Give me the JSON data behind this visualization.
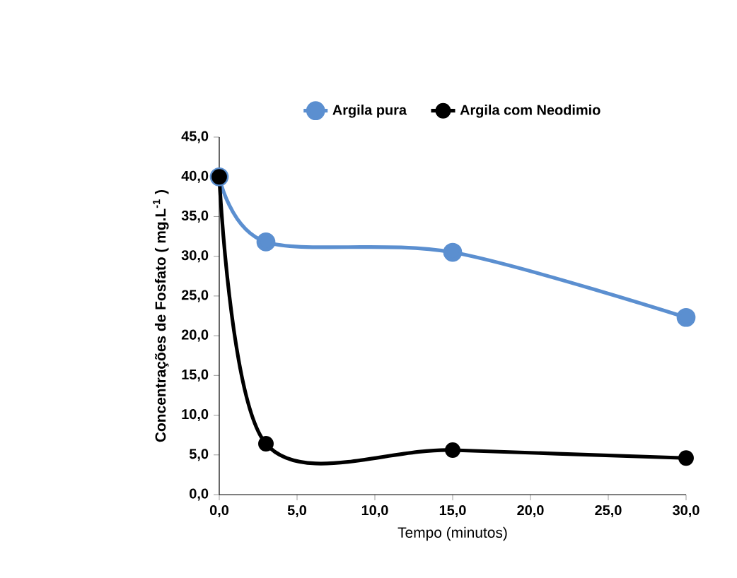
{
  "chart_data": {
    "type": "line",
    "x": [
      0,
      3,
      15,
      30
    ],
    "series": [
      {
        "name": "Argila pura",
        "color": "#5b8fd0",
        "values": [
          40.0,
          31.8,
          30.5,
          22.3
        ]
      },
      {
        "name": "Argila com Neodimio",
        "color": "#000000",
        "values": [
          40.0,
          6.4,
          5.6,
          4.6
        ]
      }
    ],
    "xlabel": "Tempo (minutos)",
    "ylabel": "Concentrações de Fosfato ( mg.L$^{-1}$ )",
    "xlim": [
      0,
      30
    ],
    "ylim": [
      0,
      45
    ],
    "xticks": [
      {
        "value": 0,
        "label": "0,0"
      },
      {
        "value": 5,
        "label": "5,0"
      },
      {
        "value": 10,
        "label": "10,0"
      },
      {
        "value": 15,
        "label": "15,0"
      },
      {
        "value": 20,
        "label": "20,0"
      },
      {
        "value": 25,
        "label": "25,0"
      },
      {
        "value": 30,
        "label": "30,0"
      }
    ],
    "yticks": [
      {
        "value": 0,
        "label": "0,0"
      },
      {
        "value": 5,
        "label": "5,0"
      },
      {
        "value": 10,
        "label": "10,0"
      },
      {
        "value": 15,
        "label": "15,0"
      },
      {
        "value": 20,
        "label": "20,0"
      },
      {
        "value": 25,
        "label": "25,0"
      },
      {
        "value": 30,
        "label": "30,0"
      },
      {
        "value": 35,
        "label": "35,0"
      },
      {
        "value": 40,
        "label": "40,0"
      },
      {
        "value": 45,
        "label": "45,0"
      }
    ],
    "grid": false,
    "legend": "top",
    "marker": "circle",
    "line_style": "solid"
  }
}
